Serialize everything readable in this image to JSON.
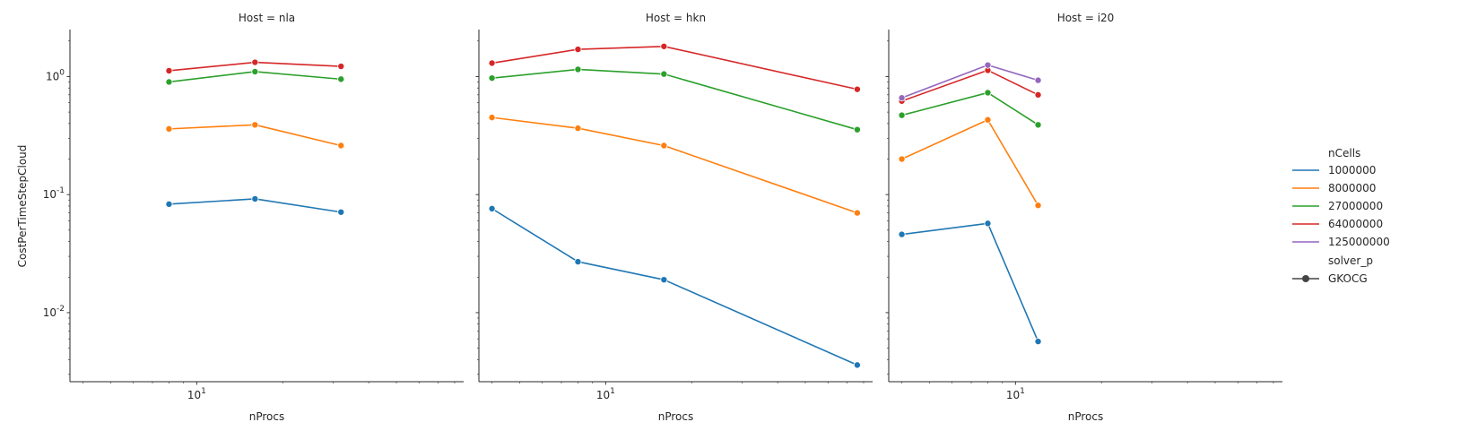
{
  "chart_data": {
    "type": "line",
    "x_scale": "log",
    "y_scale": "log",
    "xlabel": "nProcs",
    "ylabel": "CostPerTimeStepCloud",
    "xlim": [
      3.6,
      86
    ],
    "ylim": [
      0.0026,
      2.5
    ],
    "x_tick_labels": [
      {
        "value": 10,
        "label": "10^1"
      }
    ],
    "y_tick_labels": [
      {
        "value": 1,
        "label": "10^0"
      },
      {
        "value": 0.1,
        "label": "10^-1"
      },
      {
        "value": 0.01,
        "label": "10^-2"
      }
    ],
    "legend": {
      "position": "right",
      "hue_title": "nCells",
      "style_title": "solver_p",
      "entries": [
        {
          "label": "1000000",
          "color": "#1f77b4"
        },
        {
          "label": "8000000",
          "color": "#ff7f0e"
        },
        {
          "label": "27000000",
          "color": "#2ca02c"
        },
        {
          "label": "64000000",
          "color": "#d62728"
        },
        {
          "label": "125000000",
          "color": "#9467bd"
        }
      ],
      "style_entries": [
        {
          "label": "GKOCG",
          "color": "#444444"
        }
      ]
    },
    "panels": [
      {
        "title": "Host = nla",
        "series": [
          {
            "name": "1000000",
            "color": "#1f77b4",
            "x": [
              8,
              16,
              32
            ],
            "y": [
              0.083,
              0.092,
              0.071
            ]
          },
          {
            "name": "8000000",
            "color": "#ff7f0e",
            "x": [
              8,
              16,
              32
            ],
            "y": [
              0.36,
              0.39,
              0.26
            ]
          },
          {
            "name": "27000000",
            "color": "#2ca02c",
            "x": [
              8,
              16,
              32
            ],
            "y": [
              0.9,
              1.1,
              0.95
            ]
          },
          {
            "name": "64000000",
            "color": "#d62728",
            "x": [
              8,
              16,
              32
            ],
            "y": [
              1.12,
              1.32,
              1.22
            ]
          }
        ]
      },
      {
        "title": "Host = hkn",
        "series": [
          {
            "name": "1000000",
            "color": "#1f77b4",
            "x": [
              4,
              8,
              16,
              76
            ],
            "y": [
              0.076,
              0.027,
              0.019,
              0.0036
            ]
          },
          {
            "name": "8000000",
            "color": "#ff7f0e",
            "x": [
              4,
              8,
              16,
              76
            ],
            "y": [
              0.45,
              0.365,
              0.26,
              0.07
            ]
          },
          {
            "name": "27000000",
            "color": "#2ca02c",
            "x": [
              4,
              8,
              16,
              76
            ],
            "y": [
              0.97,
              1.15,
              1.05,
              0.355
            ]
          },
          {
            "name": "64000000",
            "color": "#d62728",
            "x": [
              4,
              8,
              16,
              76
            ],
            "y": [
              1.3,
              1.7,
              1.8,
              0.78
            ]
          }
        ]
      },
      {
        "title": "Host = i20",
        "series": [
          {
            "name": "1000000",
            "color": "#1f77b4",
            "x": [
              4,
              8,
              12
            ],
            "y": [
              0.046,
              0.057,
              0.0057
            ]
          },
          {
            "name": "8000000",
            "color": "#ff7f0e",
            "x": [
              4,
              8,
              12
            ],
            "y": [
              0.2,
              0.43,
              0.081
            ]
          },
          {
            "name": "27000000",
            "color": "#2ca02c",
            "x": [
              4,
              8,
              12
            ],
            "y": [
              0.47,
              0.73,
              0.39
            ]
          },
          {
            "name": "64000000",
            "color": "#d62728",
            "x": [
              4,
              8,
              12
            ],
            "y": [
              0.62,
              1.13,
              0.7
            ]
          },
          {
            "name": "125000000",
            "color": "#9467bd",
            "x": [
              4,
              8,
              12
            ],
            "y": [
              0.66,
              1.25,
              0.93
            ]
          }
        ]
      }
    ]
  }
}
